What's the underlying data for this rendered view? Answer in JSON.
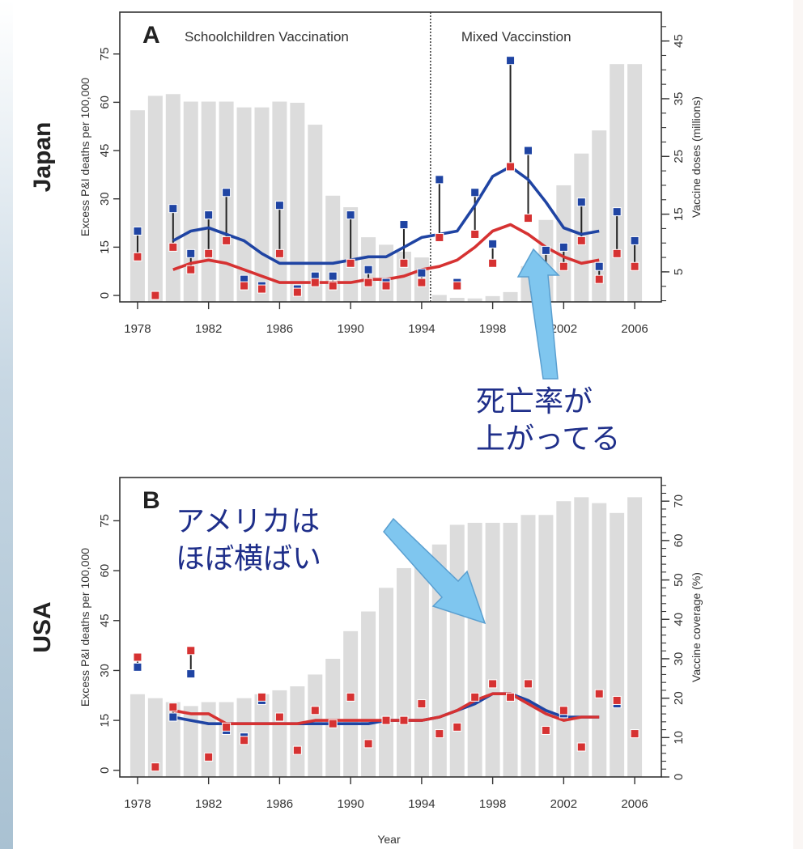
{
  "chart_data": [
    {
      "type": "bar+line+scatter",
      "panel_letter": "A",
      "country": "Japan",
      "ylabel": "Excess P&I deaths per 100,000",
      "y2label": "Vaccine doses (millions)",
      "regions": [
        {
          "label": "Schoolchildren Vaccination",
          "from": 1978,
          "to": 1994
        },
        {
          "label": "Mixed Vaccinstion",
          "from": 1994,
          "to": 2006
        }
      ],
      "divider_x": 1994.5,
      "xlim": [
        1977,
        2007.5
      ],
      "ylim": [
        -2,
        88
      ],
      "y2lim": [
        -0.2,
        50
      ],
      "x_ticks": [
        1978,
        1982,
        1986,
        1990,
        1994,
        1998,
        2002,
        2006
      ],
      "y_ticks": [
        0,
        15,
        30,
        45,
        60,
        75
      ],
      "y2_ticks": [
        5,
        15,
        25,
        35,
        45
      ],
      "y2_minor_step": 2.5,
      "bars": {
        "name": "Vaccine doses (millions)",
        "years": [
          1978,
          1979,
          1980,
          1981,
          1982,
          1983,
          1984,
          1985,
          1986,
          1987,
          1988,
          1989,
          1990,
          1991,
          1992,
          1993,
          1994,
          1995,
          1996,
          1997,
          1998,
          1999,
          2000,
          2001,
          2002,
          2003,
          2004,
          2005,
          2006
        ],
        "values": [
          33,
          35.5,
          35.8,
          34.5,
          34.5,
          34.5,
          33.5,
          33.5,
          34.5,
          34.3,
          30.5,
          18.2,
          16.2,
          11,
          9.7,
          8.5,
          7.5,
          1,
          0.5,
          0.4,
          0.8,
          1.5,
          6,
          14,
          20,
          25.5,
          29.5,
          41,
          41
        ]
      },
      "series": [
        {
          "name": "blue",
          "color": "#1f44a3",
          "points": [
            [
              1978,
              20
            ],
            [
              1980,
              27
            ],
            [
              1981,
              13
            ],
            [
              1982,
              25
            ],
            [
              1983,
              32
            ],
            [
              1984,
              5
            ],
            [
              1985,
              3
            ],
            [
              1986,
              28
            ],
            [
              1987,
              2
            ],
            [
              1988,
              6
            ],
            [
              1989,
              6
            ],
            [
              1990,
              25
            ],
            [
              1991,
              8
            ],
            [
              1992,
              4
            ],
            [
              1993,
              22
            ],
            [
              1994,
              7
            ],
            [
              1995,
              36
            ],
            [
              1996,
              4
            ],
            [
              1997,
              32
            ],
            [
              1998,
              16
            ],
            [
              1999,
              73
            ],
            [
              2000,
              45
            ],
            [
              2001,
              14
            ],
            [
              2002,
              15
            ],
            [
              2003,
              29
            ],
            [
              2004,
              9
            ],
            [
              2005,
              26
            ],
            [
              2006,
              17
            ]
          ],
          "smooth": [
            [
              1980,
              17
            ],
            [
              1981,
              20
            ],
            [
              1982,
              21
            ],
            [
              1983,
              19
            ],
            [
              1984,
              17
            ],
            [
              1985,
              13
            ],
            [
              1986,
              10
            ],
            [
              1987,
              10
            ],
            [
              1988,
              10
            ],
            [
              1989,
              10
            ],
            [
              1990,
              11
            ],
            [
              1991,
              12
            ],
            [
              1992,
              12
            ],
            [
              1993,
              15
            ],
            [
              1994,
              18
            ],
            [
              1995,
              19
            ],
            [
              1996,
              20
            ],
            [
              1997,
              28
            ],
            [
              1998,
              37
            ],
            [
              1999,
              40
            ],
            [
              2000,
              36
            ],
            [
              2001,
              29
            ],
            [
              2002,
              21
            ],
            [
              2003,
              19
            ],
            [
              2004,
              20
            ]
          ]
        },
        {
          "name": "red",
          "color": "#d63232",
          "points": [
            [
              1978,
              12
            ],
            [
              1979,
              0
            ],
            [
              1980,
              15
            ],
            [
              1981,
              8
            ],
            [
              1982,
              13
            ],
            [
              1983,
              17
            ],
            [
              1984,
              3
            ],
            [
              1985,
              2
            ],
            [
              1986,
              13
            ],
            [
              1987,
              1
            ],
            [
              1988,
              4
            ],
            [
              1989,
              3
            ],
            [
              1990,
              10
            ],
            [
              1991,
              4
            ],
            [
              1992,
              3
            ],
            [
              1993,
              10
            ],
            [
              1994,
              4
            ],
            [
              1995,
              18
            ],
            [
              1996,
              3
            ],
            [
              1997,
              19
            ],
            [
              1998,
              10
            ],
            [
              1999,
              40
            ],
            [
              2000,
              24
            ],
            [
              2001,
              8
            ],
            [
              2002,
              9
            ],
            [
              2003,
              17
            ],
            [
              2004,
              5
            ],
            [
              2005,
              13
            ],
            [
              2006,
              9
            ]
          ],
          "smooth": [
            [
              1980,
              8
            ],
            [
              1981,
              10
            ],
            [
              1982,
              11
            ],
            [
              1983,
              10
            ],
            [
              1984,
              8
            ],
            [
              1985,
              6
            ],
            [
              1986,
              4
            ],
            [
              1987,
              4
            ],
            [
              1988,
              4
            ],
            [
              1989,
              4
            ],
            [
              1990,
              4
            ],
            [
              1991,
              5
            ],
            [
              1992,
              5
            ],
            [
              1993,
              6
            ],
            [
              1994,
              8
            ],
            [
              1995,
              9
            ],
            [
              1996,
              11
            ],
            [
              1997,
              15
            ],
            [
              1998,
              20
            ],
            [
              1999,
              22
            ],
            [
              2000,
              19
            ],
            [
              2001,
              15
            ],
            [
              2002,
              12
            ],
            [
              2003,
              10
            ],
            [
              2004,
              11
            ]
          ]
        }
      ],
      "annotation": {
        "text_line1": "死亡率が",
        "text_line2": "上がってる"
      }
    },
    {
      "type": "bar+line+scatter",
      "panel_letter": "B",
      "country": "USA",
      "ylabel": "Excess P&I deaths per 100,000",
      "y2label": "Vaccine coverage (%)",
      "xlabel": "Year",
      "xlim": [
        1977,
        2007.5
      ],
      "ylim": [
        -2,
        88
      ],
      "y2lim": [
        0,
        76
      ],
      "x_ticks": [
        1978,
        1982,
        1986,
        1990,
        1994,
        1998,
        2002,
        2006
      ],
      "y_ticks": [
        0,
        15,
        30,
        45,
        60,
        75
      ],
      "y2_ticks": [
        0,
        10,
        20,
        30,
        40,
        50,
        60,
        70
      ],
      "y2_minor_step": 2,
      "bars": {
        "name": "Vaccine coverage (%)",
        "years": [
          1978,
          1979,
          1980,
          1981,
          1982,
          1983,
          1984,
          1985,
          1986,
          1987,
          1988,
          1989,
          1990,
          1991,
          1992,
          1993,
          1994,
          1995,
          1996,
          1997,
          1998,
          1999,
          2000,
          2001,
          2002,
          2003,
          2004,
          2005,
          2006
        ],
        "values": [
          21,
          20,
          19,
          18,
          19,
          19,
          20,
          21,
          22,
          23,
          26,
          30,
          37,
          42,
          48,
          53,
          56,
          59,
          64,
          64.5,
          64.5,
          64.5,
          66.5,
          66.5,
          70,
          71,
          69.5,
          67,
          71
        ]
      },
      "series": [
        {
          "name": "blue",
          "color": "#1f44a3",
          "points": [
            [
              1978,
              31
            ],
            [
              1980,
              16
            ],
            [
              1981,
              29
            ],
            [
              1983,
              12
            ],
            [
              1984,
              10
            ],
            [
              1985,
              21
            ],
            [
              2002,
              17
            ],
            [
              2005,
              20
            ]
          ],
          "smooth": [
            [
              1980,
              16
            ],
            [
              1981,
              15
            ],
            [
              1982,
              14
            ],
            [
              1983,
              14
            ],
            [
              1984,
              14
            ],
            [
              1985,
              14
            ],
            [
              1986,
              14
            ],
            [
              1987,
              14
            ],
            [
              1988,
              14
            ],
            [
              1989,
              14
            ],
            [
              1990,
              14
            ],
            [
              1991,
              14
            ],
            [
              1992,
              15
            ],
            [
              1993,
              15
            ],
            [
              1994,
              15
            ],
            [
              1995,
              16
            ],
            [
              1996,
              18
            ],
            [
              1997,
              20
            ],
            [
              1998,
              23
            ],
            [
              1999,
              23
            ],
            [
              2000,
              21
            ],
            [
              2001,
              18
            ],
            [
              2002,
              16
            ],
            [
              2003,
              16
            ],
            [
              2004,
              16
            ]
          ]
        },
        {
          "name": "red",
          "color": "#d63232",
          "points": [
            [
              1978,
              34
            ],
            [
              1979,
              1
            ],
            [
              1980,
              19
            ],
            [
              1981,
              36
            ],
            [
              1982,
              4
            ],
            [
              1983,
              13
            ],
            [
              1984,
              9
            ],
            [
              1985,
              22
            ],
            [
              1986,
              16
            ],
            [
              1987,
              6
            ],
            [
              1988,
              18
            ],
            [
              1989,
              14
            ],
            [
              1990,
              22
            ],
            [
              1991,
              8
            ],
            [
              1992,
              15
            ],
            [
              1993,
              15
            ],
            [
              1994,
              20
            ],
            [
              1995,
              11
            ],
            [
              1996,
              13
            ],
            [
              1997,
              22
            ],
            [
              1998,
              26
            ],
            [
              1999,
              22
            ],
            [
              2000,
              26
            ],
            [
              2001,
              12
            ],
            [
              2002,
              18
            ],
            [
              2003,
              7
            ],
            [
              2004,
              23
            ],
            [
              2005,
              21
            ],
            [
              2006,
              11
            ]
          ],
          "smooth": [
            [
              1980,
              18
            ],
            [
              1981,
              17
            ],
            [
              1982,
              17
            ],
            [
              1983,
              14
            ],
            [
              1984,
              14
            ],
            [
              1985,
              14
            ],
            [
              1986,
              14
            ],
            [
              1987,
              14
            ],
            [
              1988,
              15
            ],
            [
              1989,
              15
            ],
            [
              1990,
              15
            ],
            [
              1991,
              15
            ],
            [
              1992,
              15
            ],
            [
              1993,
              15
            ],
            [
              1994,
              15
            ],
            [
              1995,
              16
            ],
            [
              1996,
              18
            ],
            [
              1997,
              21
            ],
            [
              1998,
              23
            ],
            [
              1999,
              23
            ],
            [
              2000,
              20
            ],
            [
              2001,
              17
            ],
            [
              2002,
              15
            ],
            [
              2003,
              16
            ],
            [
              2004,
              16
            ]
          ]
        }
      ],
      "annotation": {
        "text_line1": "アメリカは",
        "text_line2": "ほぼ横ばい"
      }
    }
  ],
  "style": {
    "bar_color": "#dcdcdc",
    "arrow_color": "#7fc6ef",
    "arrow_edge": "#5a9fd0",
    "annotation_color": "#1f2f8a"
  }
}
